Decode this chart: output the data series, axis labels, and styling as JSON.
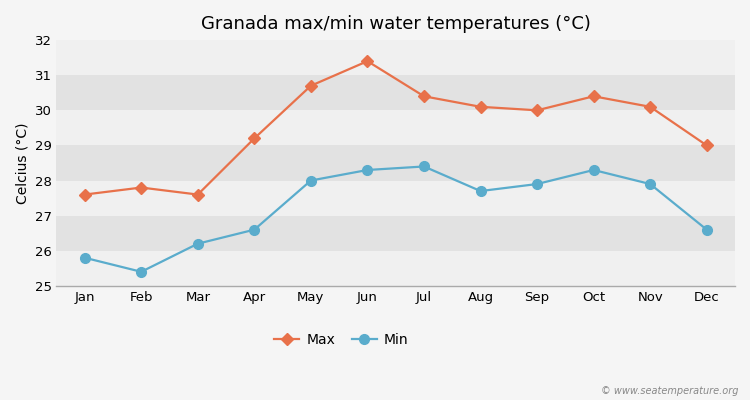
{
  "title": "Granada max/min water temperatures (°C)",
  "ylabel": "Celcius (°C)",
  "months": [
    "Jan",
    "Feb",
    "Mar",
    "Apr",
    "May",
    "Jun",
    "Jul",
    "Aug",
    "Sep",
    "Oct",
    "Nov",
    "Dec"
  ],
  "max_temps": [
    27.6,
    27.8,
    27.6,
    29.2,
    30.7,
    31.4,
    30.4,
    30.1,
    30.0,
    30.4,
    30.1,
    29.0
  ],
  "min_temps": [
    25.8,
    25.4,
    26.2,
    26.6,
    28.0,
    28.3,
    28.4,
    27.7,
    27.9,
    28.3,
    27.9,
    26.6
  ],
  "max_color": "#e8714a",
  "min_color": "#5aaccc",
  "bg_color": "#f5f5f5",
  "band_light": "#f0f0f0",
  "band_dark": "#e2e2e2",
  "ylim": [
    25,
    32
  ],
  "yticks": [
    25,
    26,
    27,
    28,
    29,
    30,
    31,
    32
  ],
  "legend_labels": [
    "Max",
    "Min"
  ],
  "watermark": "© www.seatemperature.org",
  "title_fontsize": 13,
  "label_fontsize": 10,
  "tick_fontsize": 9.5,
  "max_marker_size": 6,
  "min_marker_size": 7,
  "line_width": 1.6
}
